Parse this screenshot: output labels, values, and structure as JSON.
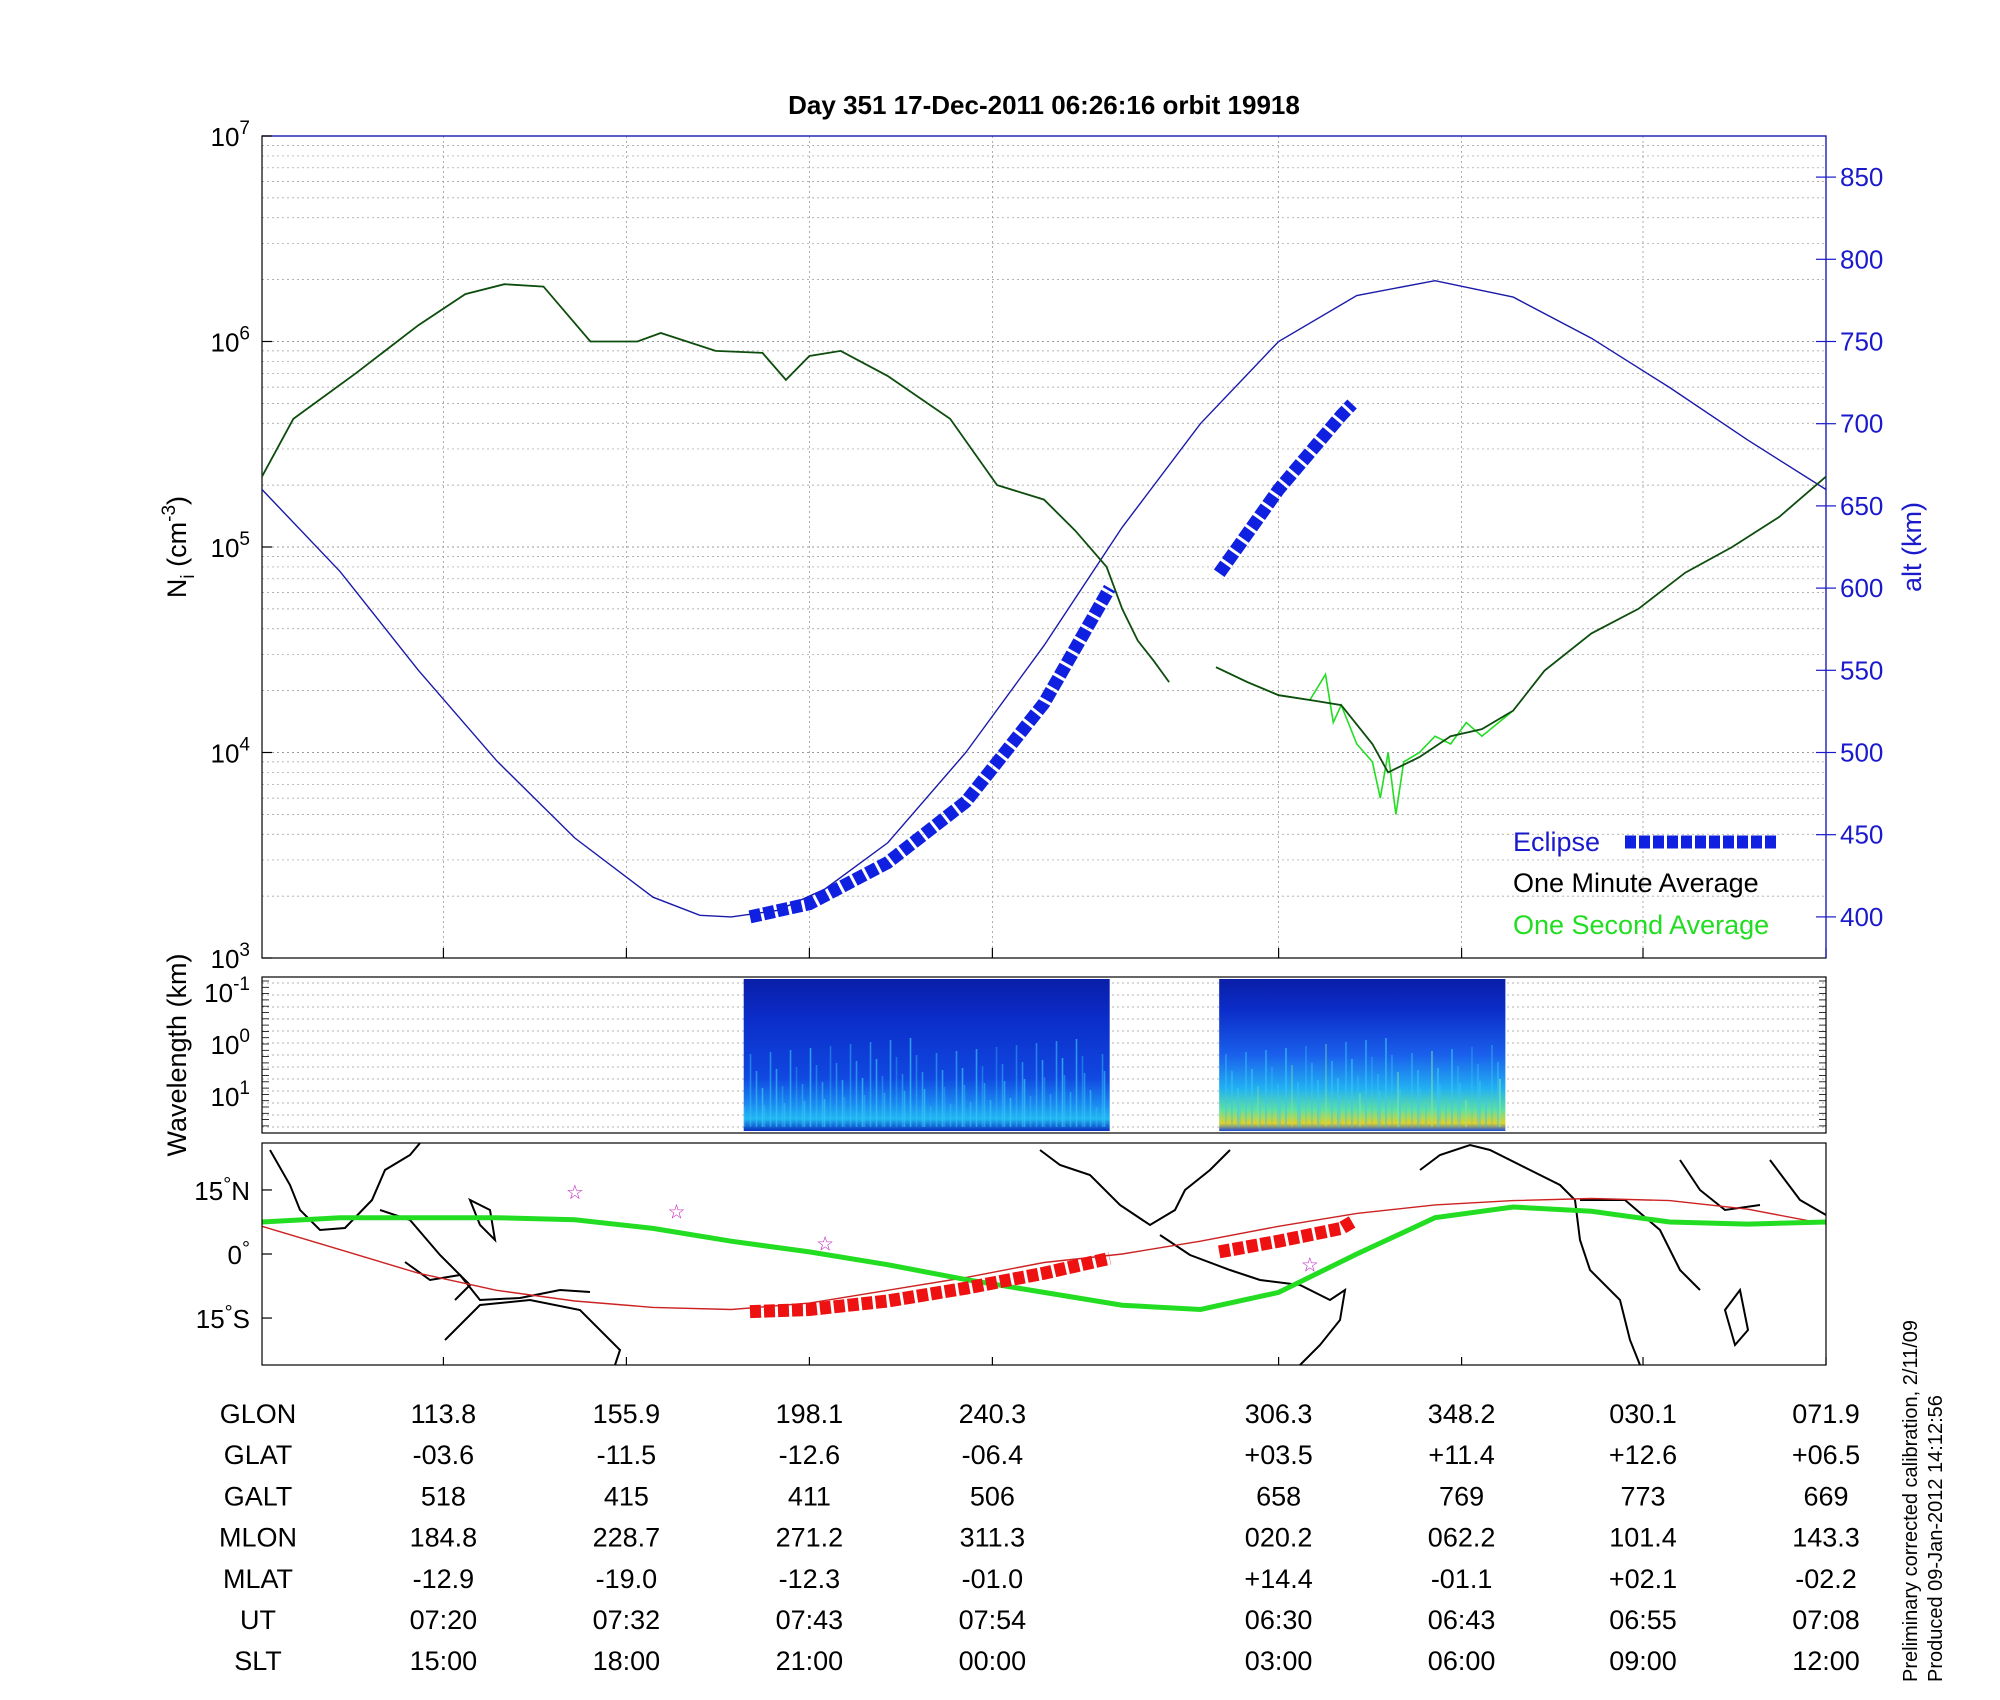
{
  "title": "Day 351  17-Dec-2011 06:26:16   orbit 19918",
  "colors": {
    "density_minute": "#0d4d0d",
    "density_second": "#22dd22",
    "altitude": "#1a1aaa",
    "eclipse": "#1020e0",
    "ground_track": "#22dd22",
    "magnetic_equator": "#cc2222",
    "eclipse_map": "#ee1111",
    "grid": "#999999"
  },
  "chart_data": [
    {
      "type": "line",
      "name": "density-panel",
      "ylabel": "N_i (cm^-3)",
      "ylabel_main": "N",
      "ylabel_sub": "i",
      "ylabel_unit": " (cm",
      "ylabel_unit_sup": "-3",
      "ylabel_close": ")",
      "ylabel_right": "alt (km)",
      "yscale": "log",
      "ylim": [
        1000,
        10000000
      ],
      "yticks": [
        {
          "base": "10",
          "exp": "3",
          "value": 1000
        },
        {
          "base": "10",
          "exp": "4",
          "value": 10000
        },
        {
          "base": "10",
          "exp": "5",
          "value": 100000
        },
        {
          "base": "10",
          "exp": "6",
          "value": 1000000
        },
        {
          "base": "10",
          "exp": "7",
          "value": 10000000
        }
      ],
      "y2lim": [
        375,
        875
      ],
      "y2ticks": [
        "400",
        "450",
        "500",
        "550",
        "600",
        "650",
        "700",
        "750",
        "800",
        "850"
      ],
      "x_fraction_range": [
        0,
        1
      ],
      "series": [
        {
          "name": "One Minute Average",
          "x": [
            0,
            0.02,
            0.06,
            0.1,
            0.13,
            0.155,
            0.18,
            0.21,
            0.24,
            0.255,
            0.29,
            0.32,
            0.335,
            0.35,
            0.37,
            0.4,
            0.44,
            0.47,
            0.5,
            0.52,
            0.54,
            0.55,
            0.56,
            0.57,
            0.58
          ],
          "y": [
            220000,
            420000,
            700000,
            1200000,
            1700000,
            1900000,
            1850000,
            1000000,
            1000000,
            1100000,
            900000,
            880000,
            650000,
            850000,
            900000,
            680000,
            420000,
            200000,
            170000,
            120000,
            80000,
            50000,
            35000,
            28000,
            22000
          ]
        },
        {
          "name": "One Minute Average (after gap)",
          "x": [
            0.61,
            0.63,
            0.65,
            0.67,
            0.69,
            0.71,
            0.72,
            0.74,
            0.76,
            0.78,
            0.8,
            0.82,
            0.85,
            0.88,
            0.91,
            0.94,
            0.97,
            1.0
          ],
          "y": [
            26000,
            22000,
            19000,
            18000,
            17000,
            11000,
            8000,
            9500,
            12000,
            13000,
            16000,
            25000,
            38000,
            50000,
            75000,
            100000,
            140000,
            220000
          ]
        },
        {
          "name": "One Second Average",
          "x": [
            0.61,
            0.63,
            0.65,
            0.67,
            0.68,
            0.685,
            0.69,
            0.7,
            0.71,
            0.715,
            0.72,
            0.725,
            0.73,
            0.74,
            0.75,
            0.76,
            0.77,
            0.78,
            0.8
          ],
          "y": [
            26000,
            22000,
            19000,
            18000,
            24000,
            14000,
            17000,
            11000,
            9000,
            6000,
            10000,
            5000,
            9000,
            10000,
            12000,
            11000,
            14000,
            12000,
            16000
          ]
        },
        {
          "name": "Altitude",
          "axis": "right",
          "x": [
            0,
            0.05,
            0.1,
            0.15,
            0.2,
            0.25,
            0.28,
            0.3,
            0.33,
            0.36,
            0.4,
            0.45,
            0.5,
            0.55,
            0.6,
            0.65,
            0.7,
            0.75,
            0.8,
            0.85,
            0.9,
            0.95,
            1.0
          ],
          "y": [
            660,
            610,
            550,
            495,
            448,
            412,
            401,
            400,
            404,
            417,
            445,
            500,
            565,
            637,
            700,
            750,
            778,
            787,
            777,
            752,
            722,
            690,
            660
          ]
        },
        {
          "name": "Eclipse",
          "axis": "right",
          "x": [
            0.312,
            0.35,
            0.4,
            0.45,
            0.5,
            0.542,
            0.612,
            0.65,
            0.69,
            0.697
          ],
          "y": [
            400,
            408,
            433,
            470,
            530,
            600,
            609,
            660,
            705,
            712
          ]
        }
      ],
      "legend": [
        {
          "label": "Eclipse",
          "color": "#1020e0"
        },
        {
          "label": "One Minute Average",
          "color": "#000000"
        },
        {
          "label": "One Second Average",
          "color": "#22dd22"
        }
      ],
      "legend_position": "bottom-right",
      "grid": true
    },
    {
      "type": "heatmap",
      "name": "wavelength-spectrogram",
      "ylabel": "Wavelength (km)",
      "yscale": "log",
      "yticks": [
        {
          "base": "10",
          "exp": "-1"
        },
        {
          "base": "10",
          "exp": "0"
        },
        {
          "base": "10",
          "exp": "1"
        }
      ],
      "data_windows": [
        {
          "x_start": 0.308,
          "x_end": 0.542
        },
        {
          "x_start": 0.612,
          "x_end": 0.795
        }
      ]
    },
    {
      "type": "line",
      "name": "ground-track-map",
      "yticks": [
        {
          "value": "15",
          "unit": "N"
        },
        {
          "value": "0",
          "unit": ""
        },
        {
          "value": "15",
          "unit": "S"
        }
      ],
      "ylim": [
        -26,
        26
      ],
      "series": [
        {
          "name": "Ground Track",
          "x": [
            0,
            0.05,
            0.1,
            0.15,
            0.2,
            0.25,
            0.3,
            0.35,
            0.4,
            0.45,
            0.5,
            0.55,
            0.6,
            0.65,
            0.7,
            0.75,
            0.8,
            0.85,
            0.9,
            0.95,
            1.0
          ],
          "y": [
            7.5,
            8.5,
            8.5,
            8.5,
            8,
            6,
            3,
            0.5,
            -2.5,
            -6,
            -9,
            -12,
            -13,
            -9,
            0,
            8.5,
            11,
            10,
            7.5,
            7,
            7.5
          ]
        },
        {
          "name": "Magnetic Equator",
          "x": [
            0,
            0.05,
            0.1,
            0.15,
            0.2,
            0.25,
            0.3,
            0.35,
            0.4,
            0.45,
            0.5,
            0.55,
            0.6,
            0.65,
            0.7,
            0.75,
            0.8,
            0.85,
            0.9,
            0.95,
            1.0
          ],
          "y": [
            6.5,
            1,
            -4.5,
            -8.5,
            -11,
            -12.5,
            -13,
            -11.5,
            -8.5,
            -5.5,
            -2,
            0,
            3,
            6.5,
            9.5,
            11.5,
            12.5,
            13,
            12.5,
            10.5,
            7
          ]
        },
        {
          "name": "Eclipse",
          "x": [
            0.312,
            0.35,
            0.4,
            0.45,
            0.5,
            0.542,
            0.612,
            0.65,
            0.69,
            0.697
          ],
          "y": [
            -13.5,
            -13,
            -11,
            -8,
            -4.5,
            -1,
            0.5,
            3,
            6,
            7.5
          ]
        }
      ],
      "stars": [
        {
          "x": 0.2,
          "y": 14.5
        },
        {
          "x": 0.265,
          "y": 10
        },
        {
          "x": 0.36,
          "y": 2.5
        },
        {
          "x": 0.67,
          "y": -2.5
        }
      ]
    }
  ],
  "table": {
    "row_labels": [
      "GLON",
      "GLAT",
      "GALT",
      "MLON",
      "MLAT",
      "UT",
      "SLT"
    ],
    "col_x_fraction": [
      0.116,
      0.233,
      0.35,
      0.467,
      0.65,
      0.767,
      0.883,
      1.0
    ],
    "columns": [
      [
        "113.8",
        "-03.6",
        "518",
        "184.8",
        "-12.9",
        "07:20",
        "15:00"
      ],
      [
        "155.9",
        "-11.5",
        "415",
        "228.7",
        "-19.0",
        "07:32",
        "18:00"
      ],
      [
        "198.1",
        "-12.6",
        "411",
        "271.2",
        "-12.3",
        "07:43",
        "21:00"
      ],
      [
        "240.3",
        "-06.4",
        "506",
        "311.3",
        "-01.0",
        "07:54",
        "00:00"
      ],
      [
        "306.3",
        "+03.5",
        "658",
        "020.2",
        "+14.4",
        "06:30",
        "03:00"
      ],
      [
        "348.2",
        "+11.4",
        "769",
        "062.2",
        "-01.1",
        "06:43",
        "06:00"
      ],
      [
        "030.1",
        "+12.6",
        "773",
        "101.4",
        "+02.1",
        "06:55",
        "09:00"
      ],
      [
        "071.9",
        "+06.5",
        "669",
        "143.3",
        "-02.2",
        "07:08",
        "12:00"
      ]
    ]
  },
  "notes": [
    "Preliminary corrected calibration, 2/11/09",
    "Produced 09-Jan-2012 14:12:56"
  ]
}
